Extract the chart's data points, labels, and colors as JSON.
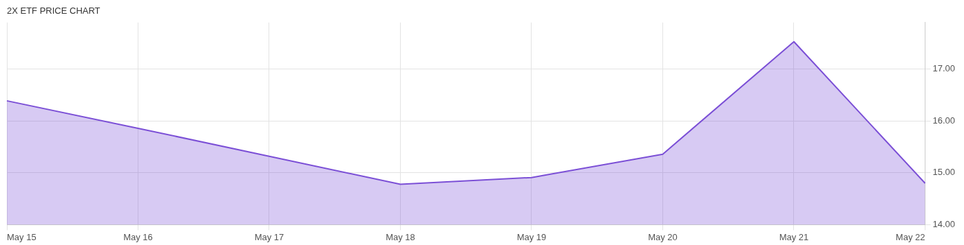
{
  "chart_data": {
    "type": "area",
    "title": "2X ETF PRICE CHART",
    "categories": [
      "May 15",
      "May 16",
      "May 17",
      "May 18",
      "May 19",
      "May 20",
      "May 21",
      "May 22"
    ],
    "series": [
      {
        "color": "#7b4fd6",
        "values": [
          16.39,
          15.86,
          15.32,
          14.78,
          14.91,
          15.36,
          17.53,
          14.8
        ]
      }
    ],
    "ylim": [
      14,
      17.9
    ],
    "yticks": [
      {
        "value": 14,
        "label": "14.00"
      },
      {
        "value": 15,
        "label": "15.00"
      },
      {
        "value": 16,
        "label": "16.00"
      },
      {
        "value": 17,
        "label": "17.00"
      }
    ],
    "grid": true,
    "legend": false,
    "marker": "none",
    "line_style": "solid"
  }
}
